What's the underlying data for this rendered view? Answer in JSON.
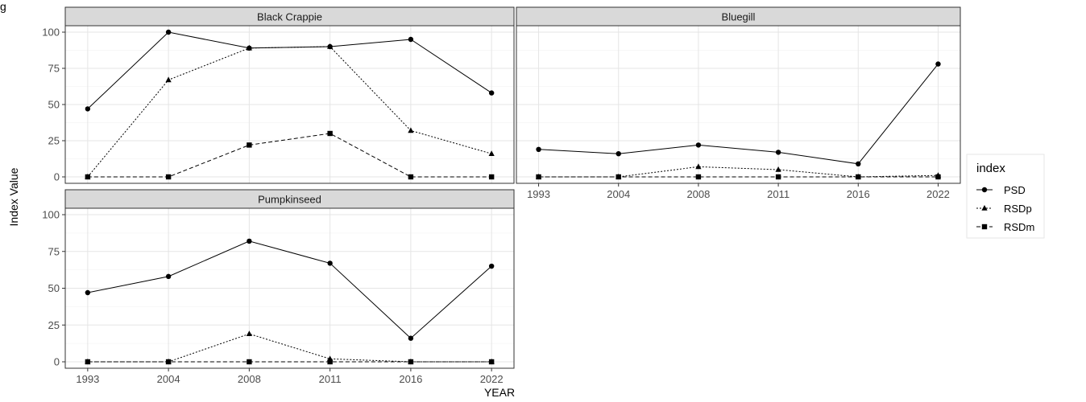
{
  "figure": {
    "title_fragment": "g",
    "ylabel": "Index Value",
    "xlabel": "YEAR"
  },
  "chart_data": {
    "type": "line",
    "facets": true,
    "categories": [
      "1993",
      "2004",
      "2008",
      "2011",
      "2016",
      "2022"
    ],
    "ylim": [
      0,
      100
    ],
    "yticks": [
      0,
      25,
      50,
      75,
      100
    ],
    "grid": true,
    "legend": {
      "title": "index",
      "placement": "right"
    },
    "series_styles": [
      {
        "name": "PSD",
        "dash": "solid",
        "marker": "circle"
      },
      {
        "name": "RSDp",
        "dash": "dotted",
        "marker": "triangle"
      },
      {
        "name": "RSDm",
        "dash": "dashed",
        "marker": "square"
      }
    ],
    "panels": [
      {
        "title": "Black Crappie",
        "series": [
          {
            "name": "PSD",
            "values": [
              47,
              100,
              89,
              90,
              95,
              58
            ]
          },
          {
            "name": "RSDp",
            "values": [
              0,
              67,
              89,
              90,
              32,
              16
            ]
          },
          {
            "name": "RSDm",
            "values": [
              0,
              0,
              22,
              30,
              0,
              0
            ]
          }
        ]
      },
      {
        "title": "Bluegill",
        "series": [
          {
            "name": "PSD",
            "values": [
              19,
              16,
              22,
              17,
              9,
              78
            ]
          },
          {
            "name": "RSDp",
            "values": [
              0,
              0,
              7,
              5,
              0,
              1
            ]
          },
          {
            "name": "RSDm",
            "values": [
              0,
              0,
              0,
              0,
              0,
              0
            ]
          }
        ]
      },
      {
        "title": "Pumpkinseed",
        "series": [
          {
            "name": "PSD",
            "values": [
              47,
              58,
              82,
              67,
              16,
              65
            ]
          },
          {
            "name": "RSDp",
            "values": [
              0,
              0,
              19,
              2,
              0,
              0
            ]
          },
          {
            "name": "RSDm",
            "values": [
              0,
              0,
              0,
              0,
              0,
              0
            ]
          }
        ]
      }
    ]
  }
}
